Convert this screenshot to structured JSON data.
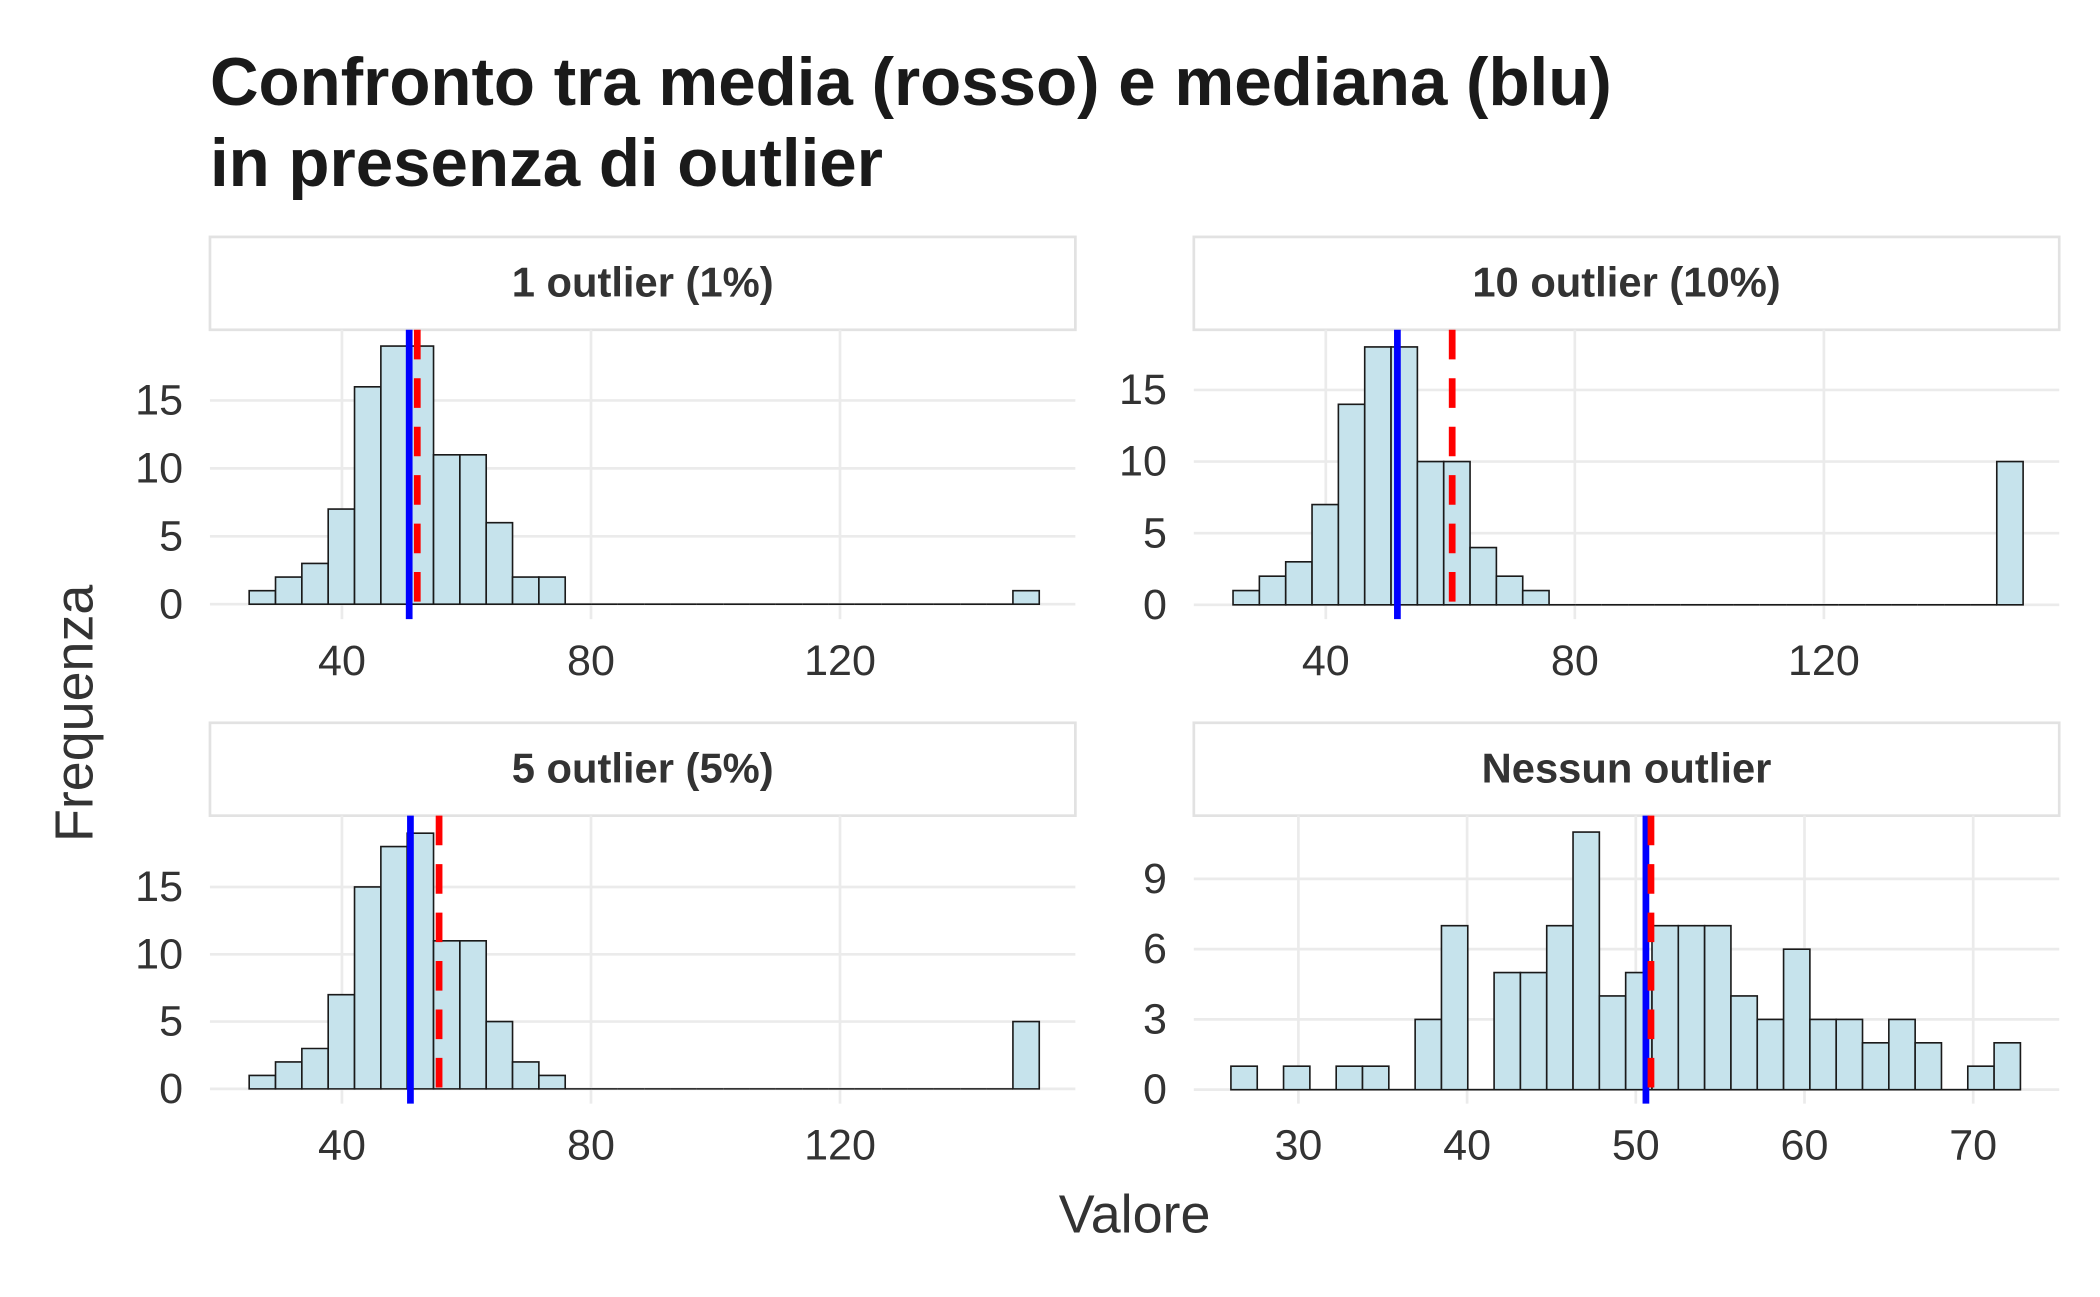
{
  "title": "Confronto tra media (rosso) e mediana (blu)\nin presenza di outlier",
  "x_label": "Valore",
  "y_label": "Frequenza",
  "chart_data": [
    {
      "type": "histogram",
      "title": "1 outlier (1%)",
      "bins": [
        25.1,
        29.33,
        33.56,
        37.79,
        42.02,
        46.25,
        50.48,
        54.71,
        58.94,
        63.17,
        67.4,
        71.63,
        75.86,
        80.09,
        84.32,
        88.55,
        92.78,
        97.01,
        101.24,
        105.47,
        109.7,
        113.93,
        118.16,
        122.39,
        126.62,
        130.85,
        135.08,
        139.31,
        143.54,
        147.77,
        152.0
      ],
      "values": [
        1,
        2,
        3,
        7,
        16,
        19,
        19,
        11,
        11,
        6,
        2,
        2,
        0,
        0,
        0,
        0,
        0,
        0,
        0,
        0,
        0,
        0,
        0,
        0,
        0,
        0,
        0,
        0,
        0,
        1
      ],
      "color": "#c6e3ec",
      "median": 50.8,
      "median_color": "#0000ff",
      "mean": 52.1,
      "mean_color": "#ff0000",
      "xlim": [
        18.8,
        157.8
      ],
      "xticks": [
        40,
        80,
        120
      ],
      "ylim": [
        -1.1,
        20.2
      ],
      "yticks": [
        0,
        5,
        10,
        15
      ],
      "grid": true
    },
    {
      "type": "histogram",
      "title": "10 outlier (10%)",
      "bins": [
        25.1,
        29.33,
        33.56,
        37.79,
        42.02,
        46.25,
        50.48,
        54.71,
        58.94,
        63.17,
        67.4,
        71.63,
        75.86,
        80.09,
        84.32,
        88.55,
        92.78,
        97.01,
        101.24,
        105.47,
        109.7,
        113.93,
        118.16,
        122.39,
        126.62,
        130.85,
        135.08,
        139.31,
        143.54,
        147.77,
        152.0
      ],
      "values": [
        1,
        2,
        3,
        7,
        14,
        18,
        18,
        10,
        10,
        4,
        2,
        1,
        0,
        0,
        0,
        0,
        0,
        0,
        0,
        0,
        0,
        0,
        0,
        0,
        0,
        0,
        0,
        0,
        0,
        10
      ],
      "color": "#c6e3ec",
      "median": 51.5,
      "median_color": "#0000ff",
      "mean": 60.3,
      "mean_color": "#ff0000",
      "xlim": [
        18.8,
        157.8
      ],
      "xticks": [
        40,
        80,
        120
      ],
      "ylim": [
        -1.0,
        19.2
      ],
      "yticks": [
        0,
        5,
        10,
        15
      ],
      "grid": true
    },
    {
      "type": "histogram",
      "title": "5 outlier (5%)",
      "bins": [
        25.1,
        29.33,
        33.56,
        37.79,
        42.02,
        46.25,
        50.48,
        54.71,
        58.94,
        63.17,
        67.4,
        71.63,
        75.86,
        80.09,
        84.32,
        88.55,
        92.78,
        97.01,
        101.24,
        105.47,
        109.7,
        113.93,
        118.16,
        122.39,
        126.62,
        130.85,
        135.08,
        139.31,
        143.54,
        147.77,
        152.0
      ],
      "values": [
        1,
        2,
        3,
        7,
        15,
        18,
        19,
        11,
        11,
        5,
        2,
        1,
        0,
        0,
        0,
        0,
        0,
        0,
        0,
        0,
        0,
        0,
        0,
        0,
        0,
        0,
        0,
        0,
        0,
        5
      ],
      "color": "#c6e3ec",
      "median": 51.0,
      "median_color": "#0000ff",
      "mean": 55.6,
      "mean_color": "#ff0000",
      "xlim": [
        18.8,
        157.8
      ],
      "xticks": [
        40,
        80,
        120
      ],
      "ylim": [
        -1.1,
        20.3
      ],
      "yticks": [
        0,
        5,
        10,
        15
      ],
      "grid": true
    },
    {
      "type": "histogram",
      "title": "Nessun outlier",
      "bins": [
        26.0,
        27.56,
        29.12,
        30.68,
        32.24,
        33.8,
        35.36,
        36.92,
        38.48,
        40.04,
        41.6,
        43.16,
        44.72,
        46.28,
        47.84,
        49.4,
        50.96,
        52.52,
        54.08,
        55.64,
        57.2,
        58.76,
        60.32,
        61.88,
        63.44,
        65.0,
        66.56,
        68.12,
        69.68,
        71.24,
        72.8
      ],
      "values": [
        1,
        0,
        1,
        0,
        1,
        1,
        0,
        3,
        7,
        0,
        5,
        5,
        7,
        11,
        4,
        5,
        7,
        7,
        7,
        4,
        3,
        6,
        3,
        3,
        2,
        3,
        2,
        0,
        1,
        2
      ],
      "color": "#c6e3ec",
      "median": 50.6,
      "median_color": "#0000ff",
      "mean": 50.9,
      "mean_color": "#ff0000",
      "xlim": [
        23.8,
        75.1
      ],
      "xticks": [
        30,
        40,
        50,
        60,
        70
      ],
      "ylim": [
        -0.6,
        11.7
      ],
      "yticks": [
        0,
        3,
        6,
        9
      ],
      "grid": true
    }
  ]
}
